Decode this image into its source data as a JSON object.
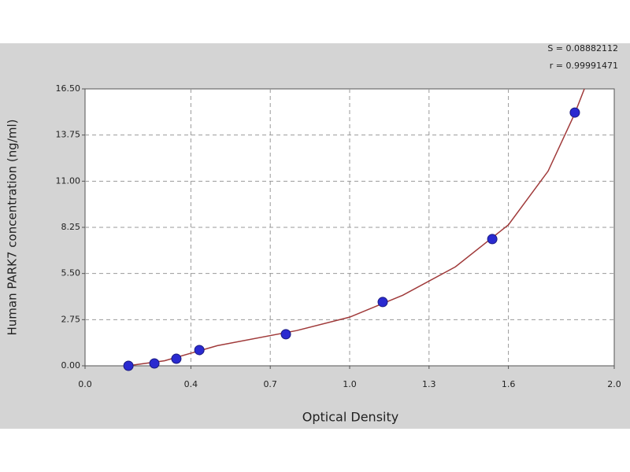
{
  "chart_data": {
    "type": "scatter",
    "xlabel": "Optical Density",
    "ylabel": "Human PARK7 concentration (ng/ml)",
    "annotations": [
      "S = 0.08882112",
      "r = 0.99991471"
    ],
    "x": [
      0.164,
      0.262,
      0.345,
      0.432,
      0.759,
      1.125,
      1.539,
      1.851
    ],
    "values": [
      0.0,
      0.14,
      0.42,
      0.94,
      1.88,
      3.8,
      7.55,
      15.09
    ],
    "color": "#2a2ad0",
    "fit": {
      "color": "#a03a3a",
      "x": [
        0.16,
        0.3,
        0.5,
        0.8,
        1.0,
        1.2,
        1.4,
        1.6,
        1.75,
        1.85,
        1.887
      ],
      "values": [
        0.0,
        0.3,
        1.2,
        2.1,
        2.9,
        4.2,
        5.9,
        8.4,
        11.6,
        15.0,
        16.5
      ]
    },
    "xlim": [
      0,
      2
    ],
    "xticks": [
      {
        "value": 0,
        "label": "0.0"
      },
      0.4,
      0.7,
      {
        "value": 1,
        "label": "1.0"
      },
      1.3,
      1.6,
      {
        "value": 2,
        "label": "2.0"
      }
    ],
    "ylim": [
      0,
      16.5
    ],
    "yticks": [
      {
        "value": 0,
        "label": "0.00"
      },
      2.75,
      {
        "value": 5.5,
        "label": "5.50"
      },
      8.25,
      {
        "value": 11,
        "label": "11.00"
      },
      13.75,
      {
        "value": 16.5,
        "label": "16.50"
      }
    ],
    "grid": true
  }
}
